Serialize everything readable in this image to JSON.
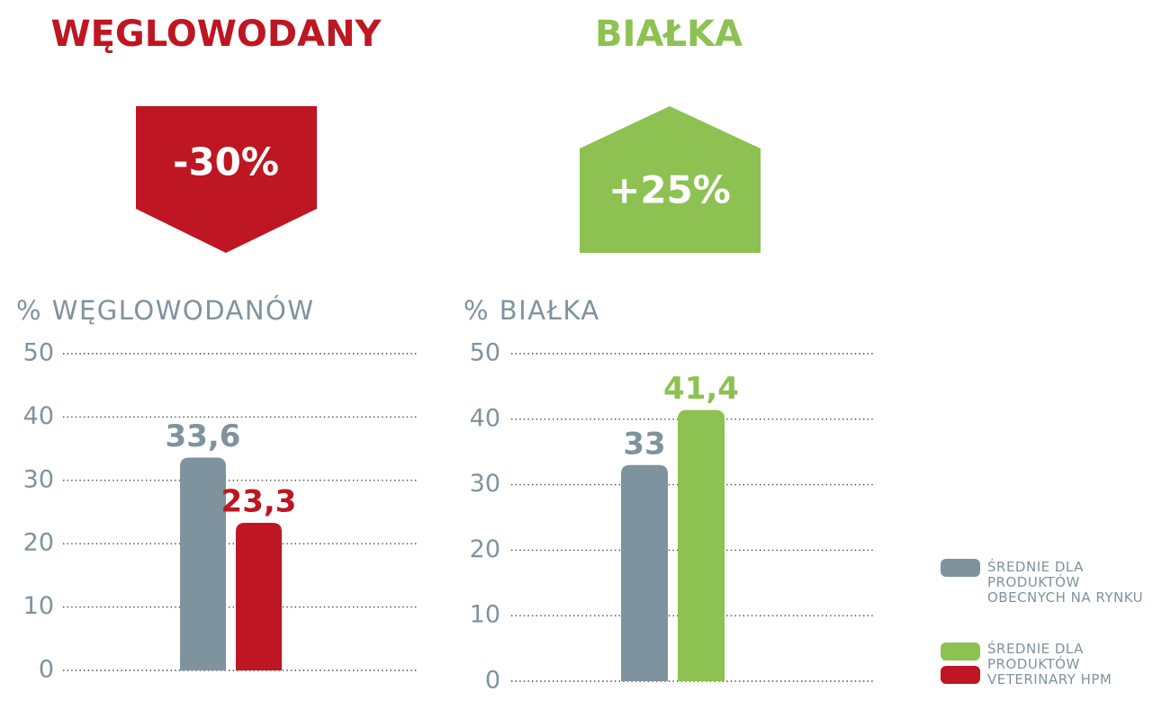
{
  "chart_data": [
    {
      "type": "bar",
      "heading": "WĘGLOWODANY",
      "badge": "-30%",
      "title": "% WĘGLOWODANÓW",
      "ylim": [
        0,
        50
      ],
      "yticks": [
        0,
        10,
        20,
        30,
        40,
        50
      ],
      "grid": true,
      "series": [
        {
          "name": "ŚREDNIE DLA PRODUKTÓW OBECNYCH NA RYNKU",
          "color": "#7f939e",
          "values": [
            33.6
          ],
          "value_labels": [
            "33,6"
          ]
        },
        {
          "name": "ŚREDNIE DLA PRODUKTÓW VETERINARY HPM",
          "color": "#be1622",
          "values": [
            23.3
          ],
          "value_labels": [
            "23,3"
          ]
        }
      ]
    },
    {
      "type": "bar",
      "heading": "BIAŁKA",
      "badge": "+25%",
      "title": "% BIAŁKA",
      "ylim": [
        0,
        50
      ],
      "yticks": [
        0,
        10,
        20,
        30,
        40,
        50
      ],
      "grid": true,
      "series": [
        {
          "color": "#7f939e",
          "values": [
            33
          ]
        },
        {
          "color": "#8dc152",
          "values": [
            41.4
          ],
          "value_labels": [
            "41,4"
          ]
        }
      ]
    }
  ]
}
